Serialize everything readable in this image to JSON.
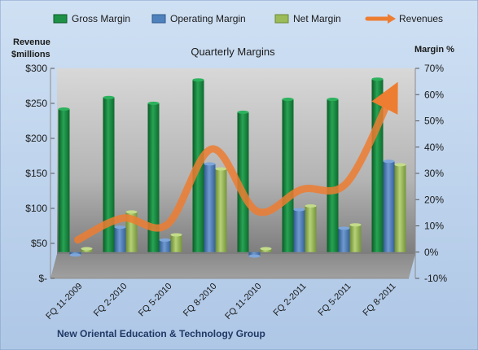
{
  "chart_data": {
    "type": "bar",
    "title": "Quarterly Margins",
    "footer": "New Oriental Education & Technology Group",
    "y_left_label_line1": "Revenue",
    "y_left_label_line2": "$millions",
    "y_right_label": "Margin %",
    "categories": [
      "FQ 11-2009",
      "FQ 2-2010",
      "FQ 5-2010",
      "FQ 8-2010",
      "FQ 11-2010",
      "FQ 2-2011",
      "FQ 5-2011",
      "FQ 8-2011"
    ],
    "left_axis": {
      "ylim": [
        0,
        300
      ],
      "ticks": [
        0,
        50,
        100,
        150,
        200,
        250,
        300
      ],
      "tick_labels": [
        "$-",
        "$50",
        "$100",
        "$150",
        "$200",
        "$250",
        "$300"
      ]
    },
    "right_axis": {
      "ylim": [
        -10,
        70
      ],
      "ticks": [
        -10,
        0,
        10,
        20,
        30,
        40,
        50,
        60,
        70
      ],
      "tick_labels": [
        "-10%",
        "0%",
        "10%",
        "20%",
        "30%",
        "40%",
        "50%",
        "60%",
        "70%"
      ]
    },
    "series": [
      {
        "name": "Gross Margin",
        "axis": "right",
        "color": "#1e9146",
        "values": [
          54.5,
          58.9,
          56.7,
          65.6,
          53.3,
          58.2,
          58.2,
          65.9
        ]
      },
      {
        "name": "Operating Margin",
        "axis": "right",
        "color": "#4f81bd",
        "values": [
          -1.1,
          9.5,
          4.6,
          33.6,
          -1.5,
          16.2,
          9.1,
          34.6
        ]
      },
      {
        "name": "Net Margin",
        "axis": "right",
        "color": "#9bbb59",
        "values": [
          1.3,
          15.3,
          6.6,
          31.7,
          1.3,
          17.6,
          10.4,
          33.3
        ]
      },
      {
        "name": "Revenues",
        "axis": "left",
        "color": "#ed7d31",
        "type": "line",
        "values": [
          55,
          86,
          77,
          185,
          96,
          127,
          136,
          262
        ]
      }
    ],
    "legend_position": "top",
    "grid": false
  }
}
